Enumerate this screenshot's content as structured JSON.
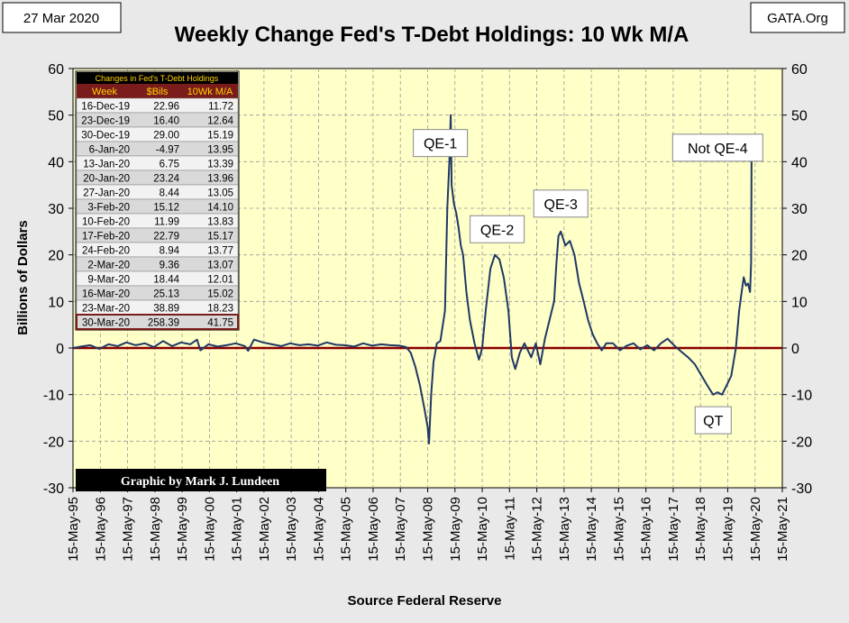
{
  "header": {
    "date": "27 Mar 2020",
    "title": "Weekly Change Fed's T-Debt Holdings: 10 Wk M/A",
    "site": "GATA.Org"
  },
  "credit": "Graphic by Mark J. Lundeen",
  "colors": {
    "plot_bg": "#ffffc8",
    "line": "#1f3864",
    "zero_line": "#8b0000",
    "table_header": "#7b1c1c",
    "table_title_bg": "#000000",
    "table_title_text": "#ffd200"
  },
  "table": {
    "title": "Changes in Fed's T-Debt Holdings",
    "columns": [
      "Week",
      "$Bils",
      "10Wk M/A"
    ],
    "rows": [
      [
        "16-Dec-19",
        "22.96",
        "11.72"
      ],
      [
        "23-Dec-19",
        "16.40",
        "12.64"
      ],
      [
        "30-Dec-19",
        "29.00",
        "15.19"
      ],
      [
        "6-Jan-20",
        "-4.97",
        "13.95"
      ],
      [
        "13-Jan-20",
        "6.75",
        "13.39"
      ],
      [
        "20-Jan-20",
        "23.24",
        "13.96"
      ],
      [
        "27-Jan-20",
        "8.44",
        "13.05"
      ],
      [
        "3-Feb-20",
        "15.12",
        "14.10"
      ],
      [
        "10-Feb-20",
        "11.99",
        "13.83"
      ],
      [
        "17-Feb-20",
        "22.79",
        "15.17"
      ],
      [
        "24-Feb-20",
        "8.94",
        "13.77"
      ],
      [
        "2-Mar-20",
        "9.36",
        "13.07"
      ],
      [
        "9-Mar-20",
        "18.44",
        "12.01"
      ],
      [
        "16-Mar-20",
        "25.13",
        "15.02"
      ],
      [
        "23-Mar-20",
        "38.89",
        "18.23"
      ],
      [
        "30-Mar-20",
        "258.39",
        "41.75"
      ]
    ]
  },
  "chart_data": {
    "type": "line",
    "title": "Weekly Change Fed's T-Debt Holdings: 10 Wk M/A",
    "xlabel": "Source Federal Reserve",
    "ylabel": "Billions  of  Dollars",
    "ylim": [
      -30,
      60
    ],
    "yticks": [
      -30,
      -20,
      -10,
      0,
      10,
      20,
      30,
      40,
      50,
      60
    ],
    "xlim": [
      "1995-05-15",
      "2021-05-15"
    ],
    "xticks": [
      "15-May-95",
      "15-May-96",
      "15-May-97",
      "15-May-98",
      "15-May-99",
      "15-May-00",
      "15-May-01",
      "15-May-02",
      "15-May-03",
      "15-May-04",
      "15-May-05",
      "15-May-06",
      "15-May-07",
      "15-May-08",
      "15-May-09",
      "15-May-10",
      "15-May-11",
      "15-May-12",
      "15-May-13",
      "15-May-14",
      "15-May-15",
      "15-May-16",
      "15-May-17",
      "15-May-18",
      "15-May-19",
      "15-May-20",
      "15-May-21"
    ],
    "grid": true,
    "reference_line": 0,
    "annotations": [
      {
        "text": "QE-1",
        "x": "2008-11-01",
        "y": 44
      },
      {
        "text": "QE-2",
        "x": "2010-12-01",
        "y": 25.5
      },
      {
        "text": "QE-3",
        "x": "2013-04-01",
        "y": 31
      },
      {
        "text": "Not QE-4",
        "x": "2019-01-01",
        "y": 43
      },
      {
        "text": "QT",
        "x": "2018-11-01",
        "y": -15.5
      }
    ],
    "series": [
      {
        "x": [
          "1995-05-15",
          "1995-09-01",
          "1996-01-01",
          "1996-05-01",
          "1996-09-01",
          "1997-01-01",
          "1997-05-01",
          "1997-09-01",
          "1998-01-01",
          "1998-05-01",
          "1998-09-01",
          "1999-01-01",
          "1999-05-01",
          "1999-09-01",
          "1999-12-01",
          "2000-01-15",
          "2000-05-01",
          "2000-09-01",
          "2001-01-01",
          "2001-05-01",
          "2001-09-01",
          "2001-10-15",
          "2002-01-01",
          "2002-05-01",
          "2002-09-01",
          "2003-01-01",
          "2003-05-01",
          "2003-09-01",
          "2004-01-01",
          "2004-05-01",
          "2004-09-01",
          "2005-01-01",
          "2005-05-01",
          "2005-09-01",
          "2006-01-01",
          "2006-05-01",
          "2006-09-01",
          "2007-01-01",
          "2007-05-01",
          "2007-08-01",
          "2007-10-01",
          "2007-12-01",
          "2008-02-01",
          "2008-04-01",
          "2008-05-15",
          "2008-06-01",
          "2008-07-01",
          "2008-08-01",
          "2008-09-15",
          "2008-11-01",
          "2009-01-01",
          "2009-02-01",
          "2009-03-01",
          "2009-03-20",
          "2009-04-01",
          "2009-05-01",
          "2009-06-01",
          "2009-07-01",
          "2009-08-01",
          "2009-09-01",
          "2009-10-15",
          "2009-12-01",
          "2010-02-01",
          "2010-04-01",
          "2010-05-15",
          "2010-07-01",
          "2010-09-01",
          "2010-11-01",
          "2011-01-01",
          "2011-03-01",
          "2011-05-01",
          "2011-06-15",
          "2011-08-01",
          "2011-10-01",
          "2011-12-01",
          "2012-03-01",
          "2012-05-01",
          "2012-07-01",
          "2012-09-01",
          "2012-11-01",
          "2013-01-01",
          "2013-02-01",
          "2013-03-01",
          "2013-04-01",
          "2013-06-01",
          "2013-08-01",
          "2013-10-01",
          "2013-12-01",
          "2014-02-01",
          "2014-04-01",
          "2014-06-01",
          "2014-08-01",
          "2014-10-01",
          "2014-12-01",
          "2015-03-01",
          "2015-06-01",
          "2015-09-01",
          "2015-12-01",
          "2016-03-01",
          "2016-06-01",
          "2016-09-01",
          "2016-12-01",
          "2017-03-01",
          "2017-06-01",
          "2017-09-01",
          "2017-12-01",
          "2018-03-01",
          "2018-06-01",
          "2018-09-01",
          "2018-11-01",
          "2019-01-01",
          "2019-03-01",
          "2019-05-01",
          "2019-07-01",
          "2019-09-01",
          "2019-10-15",
          "2019-11-15",
          "2019-12-16",
          "2020-01-13",
          "2020-02-10",
          "2020-03-09",
          "2020-03-23",
          "2020-03-30"
        ],
        "values": [
          0,
          0.3,
          0.6,
          -0.2,
          0.8,
          0.4,
          1.2,
          0.6,
          1.0,
          0.2,
          1.5,
          0.4,
          1.2,
          0.8,
          1.8,
          -0.5,
          0.8,
          0.3,
          0.6,
          1.0,
          0.4,
          -0.6,
          1.8,
          1.2,
          0.8,
          0.4,
          1.0,
          0.6,
          0.8,
          0.5,
          1.2,
          0.7,
          0.6,
          0.3,
          1.0,
          0.5,
          0.8,
          0.6,
          0.5,
          0.2,
          -1.0,
          -4.0,
          -8.0,
          -13.0,
          -17.0,
          -20.5,
          -10.0,
          -3.0,
          1.0,
          1.5,
          8.0,
          30.0,
          40.0,
          50.0,
          35.0,
          31.0,
          29.0,
          26.0,
          22.0,
          20.0,
          12.0,
          6.0,
          1.0,
          -2.5,
          0,
          8.0,
          17.0,
          20.0,
          19.0,
          15.0,
          8.0,
          -2.0,
          -4.5,
          -1.0,
          1.0,
          -2.0,
          1.0,
          -3.5,
          2.0,
          6.0,
          10.0,
          18.0,
          24.0,
          25.0,
          22.0,
          23.0,
          20.0,
          14.0,
          10.0,
          6.0,
          3.0,
          1.0,
          -0.5,
          1.0,
          1.0,
          -0.5,
          0.5,
          1.0,
          -0.3,
          0.6,
          -0.5,
          1.0,
          2.0,
          0.5,
          -0.8,
          -2.0,
          -3.5,
          -6.0,
          -8.5,
          -10.0,
          -9.5,
          -10.0,
          -8.0,
          -6.0,
          0,
          8.0,
          11.72,
          15.19,
          13.39,
          13.83,
          12.01,
          18.23,
          41.75
        ]
      }
    ]
  }
}
